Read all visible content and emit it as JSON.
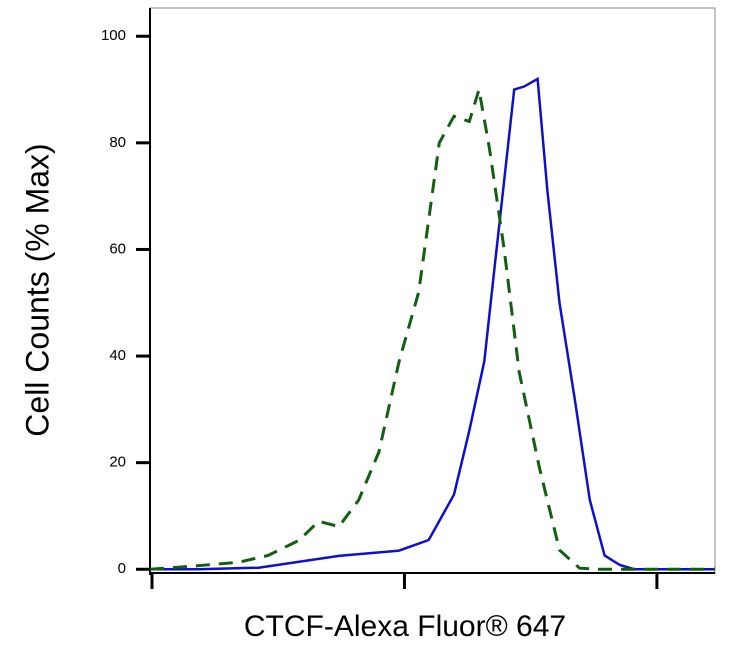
{
  "chart_data": {
    "type": "line",
    "y_label": "Cell Counts (% Max)",
    "x_label": "CTCF-Alexa Fluor® 647",
    "x_scale": "log",
    "xlim": [
      1,
      173
    ],
    "xticks": [
      1,
      10,
      100
    ],
    "ylim": [
      -0.7,
      105.3
    ],
    "yticks": [
      0,
      20,
      40,
      60,
      80,
      100
    ],
    "series": [
      {
        "color": "#1010c8",
        "dash": false,
        "x": [
          1,
          1.55,
          2.69,
          5.6,
          9.7,
          12.7,
          16.0,
          18.4,
          21.1,
          23.1,
          25.3,
          27.7,
          30.4,
          34.3,
          37.5,
          41.9,
          48.1,
          55.2,
          63.2,
          72.6,
          83.2,
          173
        ],
        "values": [
          0,
          0,
          0.3,
          2.5,
          3.5,
          5.5,
          14,
          26,
          39,
          56,
          73,
          90,
          90.6,
          92,
          71,
          50,
          32,
          13,
          2.6,
          0.8,
          0,
          0
        ]
      },
      {
        "color": "#106010",
        "dash": true,
        "x": [
          1,
          1.48,
          2.24,
          2.94,
          3.88,
          4.66,
          5.6,
          6.71,
          8.07,
          9.7,
          11.6,
          14.0,
          16.0,
          18.4,
          20.1,
          22.1,
          25.3,
          29.0,
          34.9,
          41.9,
          50.3,
          60.4,
          173
        ],
        "values": [
          0,
          0.6,
          1.3,
          2.6,
          5.4,
          9,
          8,
          13,
          22,
          39,
          52,
          80,
          85,
          84,
          90,
          79,
          60,
          37,
          19,
          3.6,
          0.2,
          0,
          0
        ]
      }
    ]
  }
}
